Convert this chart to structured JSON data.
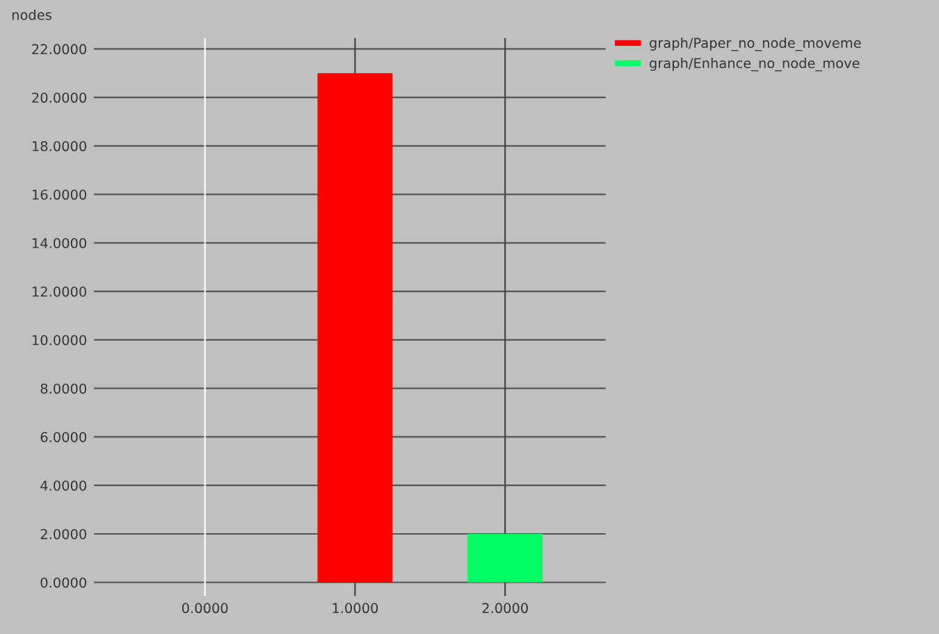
{
  "chart_data": {
    "type": "bar",
    "ylabel": "nodes",
    "series": [
      {
        "name": "graph/Paper_no_node_moveme",
        "color": "#ff0000",
        "x": [
          1
        ],
        "values": [
          21
        ]
      },
      {
        "name": "graph/Enhance_no_node_move",
        "color": "#00ff66",
        "x": [
          2
        ],
        "values": [
          2
        ]
      }
    ],
    "xlim": [
      -0.74,
      2.67
    ],
    "xticks": [
      {
        "value": 0,
        "label": "0.0000"
      },
      {
        "value": 1,
        "label": "1.0000"
      },
      {
        "value": 2,
        "label": "2.0000"
      }
    ],
    "ylim": [
      -0.56,
      22.45
    ],
    "yticks": [
      {
        "value": 0,
        "label": "0.0000"
      },
      {
        "value": 2,
        "label": "2.0000"
      },
      {
        "value": 4,
        "label": "4.0000"
      },
      {
        "value": 6,
        "label": "6.0000"
      },
      {
        "value": 8,
        "label": "8.0000"
      },
      {
        "value": 10,
        "label": "10.0000"
      },
      {
        "value": 12,
        "label": "12.0000"
      },
      {
        "value": 14,
        "label": "14.0000"
      },
      {
        "value": 16,
        "label": "16.0000"
      },
      {
        "value": 18,
        "label": "18.0000"
      },
      {
        "value": 20,
        "label": "20.0000"
      },
      {
        "value": 22,
        "label": "22.0000"
      }
    ],
    "grid": true,
    "legend": "top right"
  }
}
